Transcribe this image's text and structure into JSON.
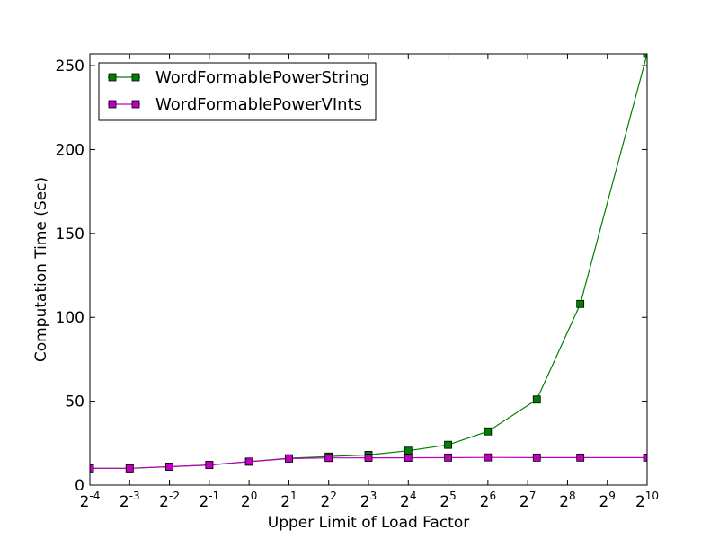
{
  "chart_data": {
    "type": "line",
    "title": "",
    "xlabel": "Upper Limit of Load Factor",
    "ylabel": "Computation Time (Sec)",
    "x_scale": "log2",
    "xlim": [
      0.0625,
      1024
    ],
    "ylim": [
      0,
      257
    ],
    "grid": false,
    "legend_position": "top-left",
    "x_ticks": [
      {
        "base": "2",
        "exp": "-4",
        "value": 0.0625
      },
      {
        "base": "2",
        "exp": "-3",
        "value": 0.125
      },
      {
        "base": "2",
        "exp": "-2",
        "value": 0.25
      },
      {
        "base": "2",
        "exp": "-1",
        "value": 0.5
      },
      {
        "base": "2",
        "exp": "0",
        "value": 1
      },
      {
        "base": "2",
        "exp": "1",
        "value": 2
      },
      {
        "base": "2",
        "exp": "2",
        "value": 4
      },
      {
        "base": "2",
        "exp": "3",
        "value": 8
      },
      {
        "base": "2",
        "exp": "4",
        "value": 16
      },
      {
        "base": "2",
        "exp": "5",
        "value": 32
      },
      {
        "base": "2",
        "exp": "6",
        "value": 64
      },
      {
        "base": "2",
        "exp": "7",
        "value": 128
      },
      {
        "base": "2",
        "exp": "8",
        "value": 256
      },
      {
        "base": "2",
        "exp": "9",
        "value": 512
      },
      {
        "base": "2",
        "exp": "10",
        "value": 1024
      }
    ],
    "y_ticks": [
      {
        "label": "0",
        "value": 0
      },
      {
        "label": "50",
        "value": 50
      },
      {
        "label": "100",
        "value": 100
      },
      {
        "label": "150",
        "value": 150
      },
      {
        "label": "200",
        "value": 200
      },
      {
        "label": "250",
        "value": 250
      }
    ],
    "series": [
      {
        "name": "WordFormablePowerString",
        "color": "#007f00",
        "marker": "square",
        "x": [
          0.0625,
          0.125,
          0.25,
          0.5,
          1,
          2,
          4,
          8,
          16,
          32,
          64,
          150,
          320,
          1024
        ],
        "y": [
          10,
          10,
          11,
          12,
          14,
          16,
          17,
          18,
          20.5,
          24,
          32,
          51,
          108,
          257
        ]
      },
      {
        "name": "WordFormablePowerVInts",
        "color": "#bf00bf",
        "marker": "square",
        "x": [
          0.0625,
          0.125,
          0.25,
          0.5,
          1,
          2,
          4,
          8,
          16,
          32,
          64,
          150,
          320,
          1024
        ],
        "y": [
          10,
          10,
          11,
          12,
          14,
          15.8,
          16.2,
          16.3,
          16.3,
          16.4,
          16.5,
          16.4,
          16.4,
          16.4
        ]
      }
    ]
  }
}
